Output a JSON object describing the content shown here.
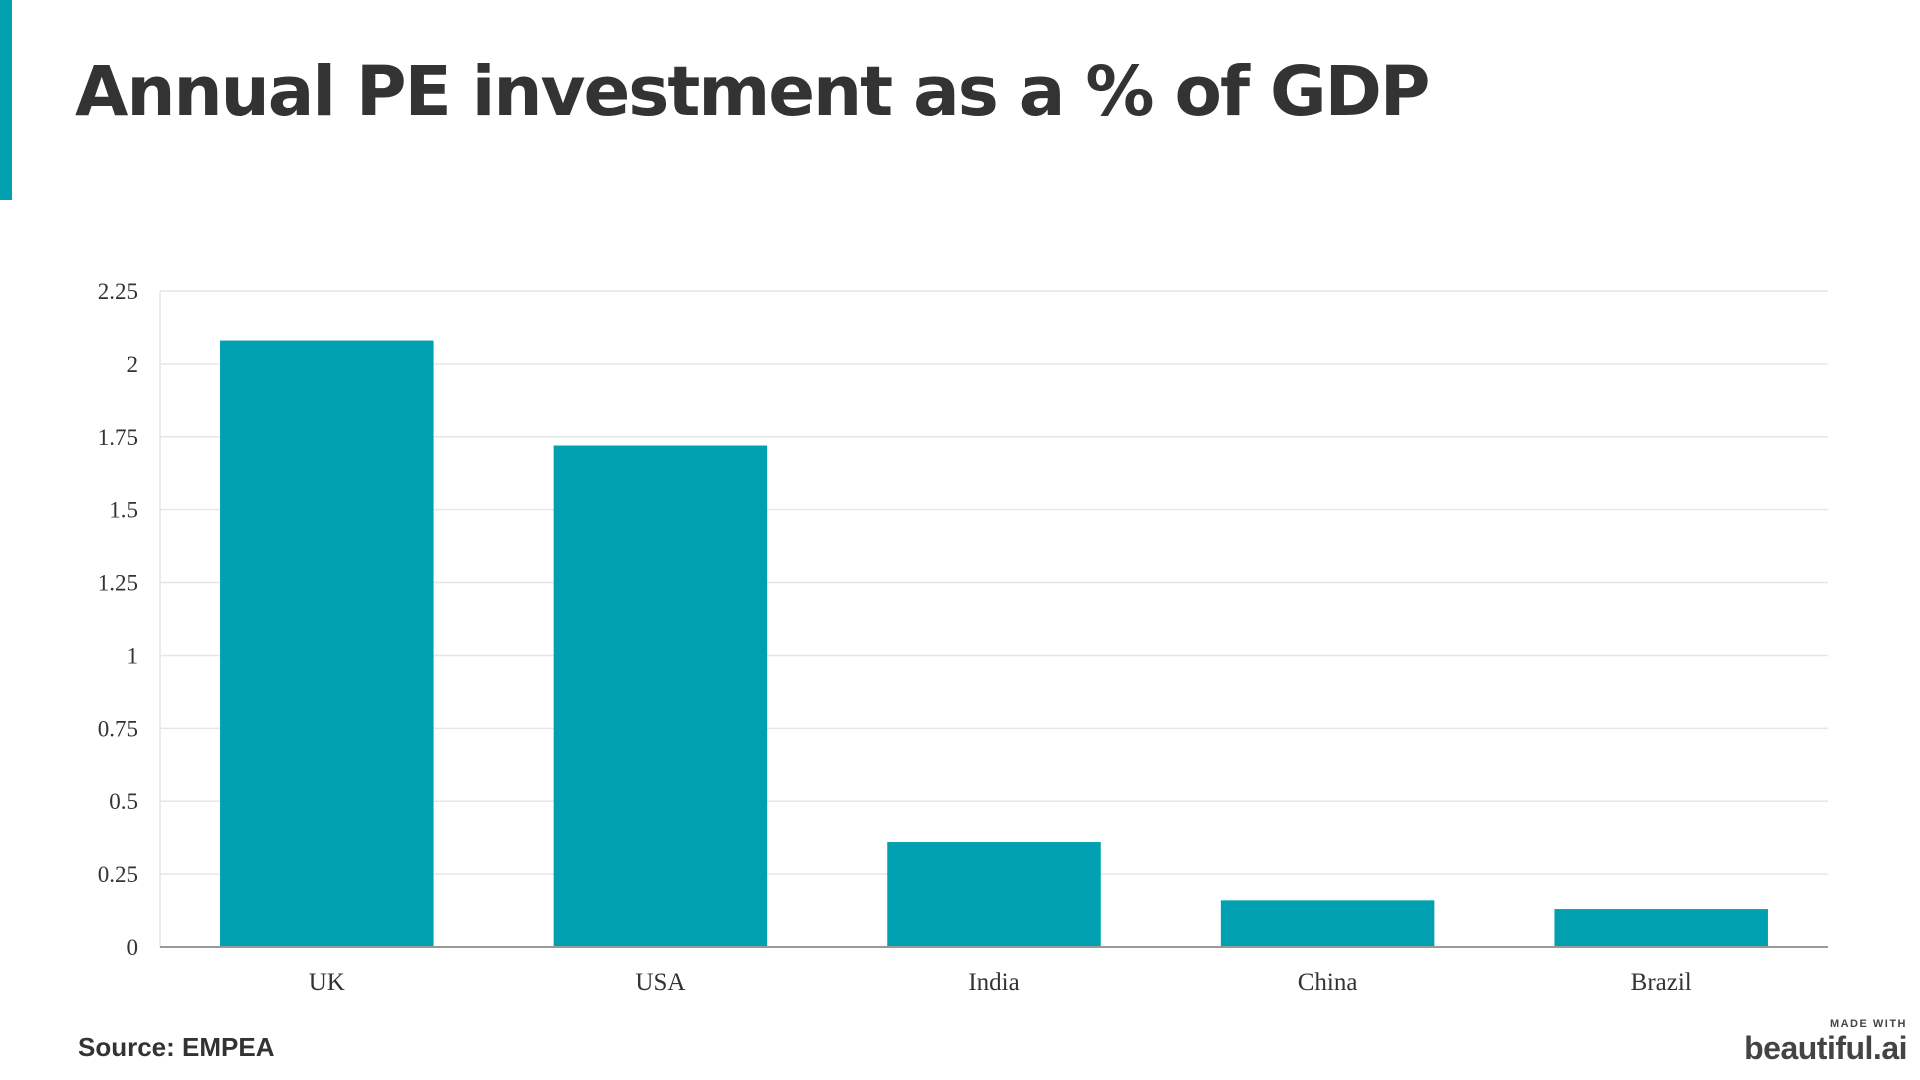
{
  "slide": {
    "title": "Annual PE investment as a % of GDP",
    "source": "Source: EMPEA",
    "logo": {
      "caption": "MADE WITH",
      "wordmark": "beautiful.ai"
    }
  },
  "colors": {
    "accent": "#00a0b0",
    "bar": "#00a0b0",
    "text": "#333333",
    "grid": "#e6e6e6",
    "axis": "#999999"
  },
  "chart_data": {
    "type": "bar",
    "title": "",
    "xlabel": "",
    "ylabel": "",
    "categories": [
      "UK",
      "USA",
      "India",
      "China",
      "Brazil"
    ],
    "values": [
      2.08,
      1.72,
      0.36,
      0.16,
      0.13
    ],
    "ylim": [
      0,
      2.25
    ],
    "yticks": [
      0,
      0.25,
      0.5,
      0.75,
      1,
      1.25,
      1.5,
      1.75,
      2,
      2.25
    ],
    "ytick_labels": [
      "0",
      "0.25",
      "0.5",
      "0.75",
      "1",
      "1.25",
      "1.5",
      "1.75",
      "2",
      "2.25"
    ],
    "grid": true,
    "legend": "none"
  }
}
